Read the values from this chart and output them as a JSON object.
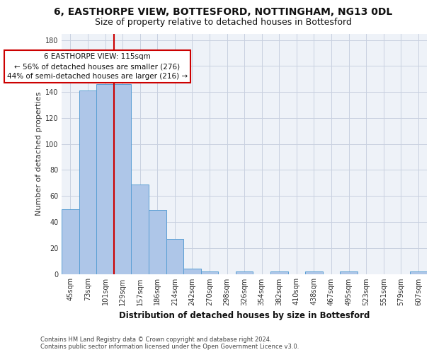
{
  "title1": "6, EASTHORPE VIEW, BOTTESFORD, NOTTINGHAM, NG13 0DL",
  "title2": "Size of property relative to detached houses in Bottesford",
  "xlabel": "Distribution of detached houses by size in Bottesford",
  "ylabel": "Number of detached properties",
  "categories": [
    "45sqm",
    "73sqm",
    "101sqm",
    "129sqm",
    "157sqm",
    "186sqm",
    "214sqm",
    "242sqm",
    "270sqm",
    "298sqm",
    "326sqm",
    "354sqm",
    "382sqm",
    "410sqm",
    "438sqm",
    "467sqm",
    "495sqm",
    "523sqm",
    "551sqm",
    "579sqm",
    "607sqm"
  ],
  "values": [
    50,
    141,
    146,
    146,
    69,
    49,
    27,
    4,
    2,
    0,
    2,
    0,
    2,
    0,
    2,
    0,
    2,
    0,
    0,
    0,
    2
  ],
  "bar_color": "#aec6e8",
  "bar_edge_color": "#5a9fd4",
  "line_color": "#cc0000",
  "annotation_text": "6 EASTHORPE VIEW: 115sqm\n← 56% of detached houses are smaller (276)\n44% of semi-detached houses are larger (216) →",
  "annotation_box_color": "#ffffff",
  "annotation_box_edge": "#cc0000",
  "ylim": [
    0,
    185
  ],
  "yticks": [
    0,
    20,
    40,
    60,
    80,
    100,
    120,
    140,
    160,
    180
  ],
  "background_color": "#eef2f8",
  "grid_color": "#c8d0e0",
  "footer": "Contains HM Land Registry data © Crown copyright and database right 2024.\nContains public sector information licensed under the Open Government Licence v3.0.",
  "title1_fontsize": 10,
  "title2_fontsize": 9,
  "xlabel_fontsize": 8.5,
  "ylabel_fontsize": 8,
  "tick_fontsize": 7,
  "annotation_fontsize": 7.5
}
